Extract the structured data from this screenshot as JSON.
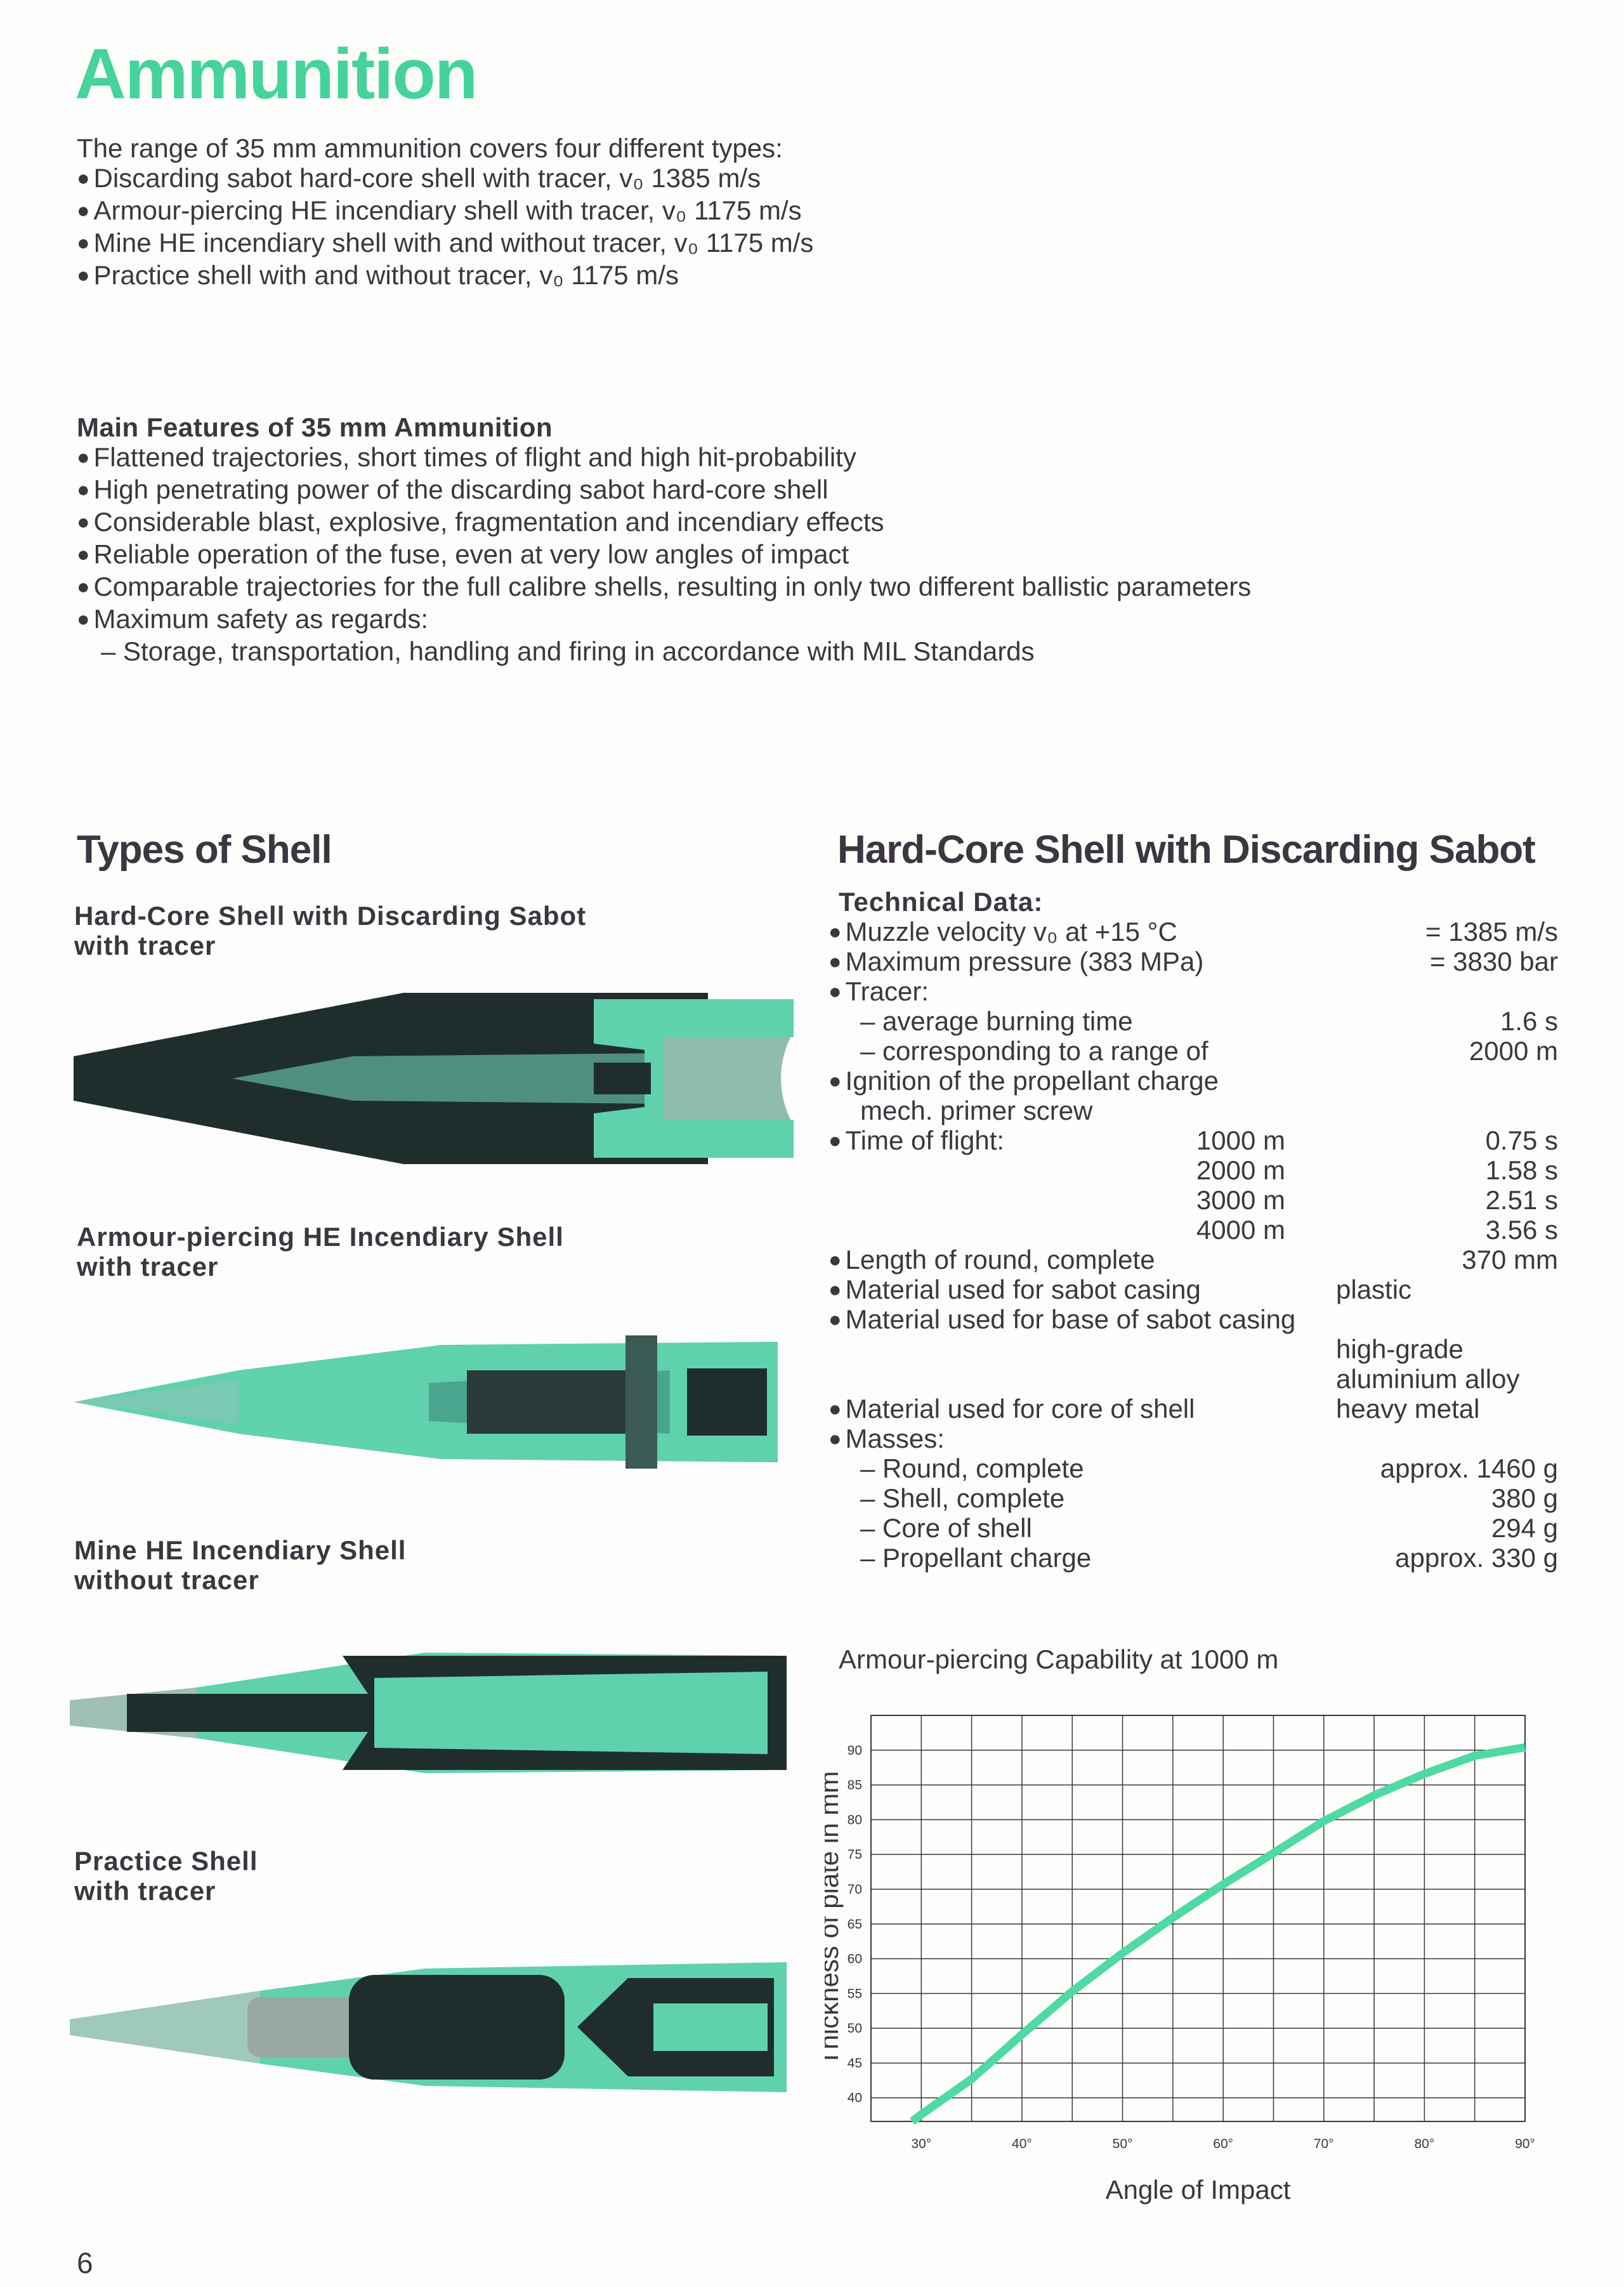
{
  "title": "Ammunition",
  "intro": {
    "lead": "The range of 35 mm ammunition covers four different types:",
    "items": [
      "Discarding sabot hard-core shell with tracer, v₀ 1385 m/s",
      "Armour-piercing HE incendiary shell with tracer, v₀ 1175 m/s",
      "Mine HE incendiary shell with and without tracer, v₀ 1175 m/s",
      "Practice shell with and without tracer, v₀ 1175 m/s"
    ]
  },
  "features": {
    "heading": "Main Features of 35 mm Ammunition",
    "items": [
      "Flattened trajectories, short times of flight and high hit-probability",
      "High penetrating power of the discarding sabot hard-core shell",
      "Considerable blast, explosive, fragmentation and incendiary effects",
      "Reliable operation of the fuse, even at very low angles of impact",
      "Comparable trajectories for the full calibre shells, resulting in only two different ballistic parameters",
      "Maximum safety as regards:"
    ],
    "subitem": "– Storage, transportation, handling and firing in accordance with MIL Standards"
  },
  "types": {
    "heading": "Types of Shell",
    "shells": [
      {
        "name": "Hard-Core Shell with Discarding Sabot",
        "sub": "with tracer"
      },
      {
        "name": "Armour-piercing HE Incendiary Shell",
        "sub": "with tracer"
      },
      {
        "name": "Mine HE Incendiary Shell",
        "sub": "without tracer"
      },
      {
        "name": "Practice Shell",
        "sub": "with tracer"
      }
    ]
  },
  "colors": {
    "accent": "#45d39b",
    "shell_teal": "#5fd2ad",
    "shell_dark": "#1f2e2d",
    "text": "#3b3640"
  },
  "tech": {
    "heading": "Hard-Core Shell with Discarding Sabot",
    "subheading": "Technical Data:",
    "rows": [
      {
        "bullet": true,
        "label": "Muzzle velocity v₀ at +15 °C",
        "value": "= 1385 m/s"
      },
      {
        "bullet": true,
        "label": "Maximum pressure (383 MPa)",
        "value": "= 3830 bar"
      },
      {
        "bullet": true,
        "label": "Tracer:"
      },
      {
        "dash": true,
        "label": "– average burning time",
        "value": "1.6 s"
      },
      {
        "dash": true,
        "label": "– corresponding to a range of",
        "value": "2000 m"
      },
      {
        "bullet": true,
        "label": "Ignition of the propellant charge"
      },
      {
        "dash": true,
        "label": "mech. primer screw"
      },
      {
        "bullet": true,
        "label": "Time of flight:",
        "mid": "1000 m",
        "value": "0.75 s"
      },
      {
        "mid": "2000 m",
        "value": "1.58 s"
      },
      {
        "mid": "3000 m",
        "value": "2.51 s"
      },
      {
        "mid": "4000 m",
        "value": "3.56 s"
      },
      {
        "bullet": true,
        "label": "Length of round, complete",
        "value": "370 mm"
      },
      {
        "bullet": true,
        "label": "Material used for sabot casing",
        "valueL": "plastic"
      },
      {
        "bullet": true,
        "label": "Material used for base of sabot casing"
      },
      {
        "valueL": "high-grade"
      },
      {
        "valueL": "aluminium alloy"
      },
      {
        "bullet": true,
        "label": "Material used for core of shell",
        "valueL": "heavy metal"
      },
      {
        "bullet": true,
        "label": "Masses:"
      },
      {
        "dash": true,
        "label": "– Round, complete",
        "value": "approx. 1460 g"
      },
      {
        "dash": true,
        "label": "– Shell, complete",
        "value": "380 g"
      },
      {
        "dash": true,
        "label": "– Core of shell",
        "value": "294 g"
      },
      {
        "dash": true,
        "label": "– Propellant charge",
        "value": "approx. 330 g"
      }
    ]
  },
  "chart_data": {
    "type": "line",
    "title": "Armour-piercing Capability at 1000 m",
    "xlabel": "Angle of Impact",
    "ylabel": "Thickness of plate in mm",
    "xlim": [
      25,
      90
    ],
    "ylim": [
      36.6,
      95
    ],
    "xticks": [
      30,
      40,
      50,
      60,
      70,
      80,
      90
    ],
    "xtick_labels": [
      "30°",
      "40°",
      "50°",
      "60°",
      "70°",
      "80°",
      "90°"
    ],
    "yticks": [
      40,
      45,
      50,
      55,
      60,
      65,
      70,
      75,
      80,
      85,
      90
    ],
    "grid": true,
    "grid_step": {
      "x": 5,
      "y": 5
    },
    "line_color": "#4fd9a4",
    "series": [
      {
        "x": [
          29.1,
          30,
          35,
          40,
          45,
          50,
          55,
          60,
          65,
          70,
          75,
          80,
          85,
          90
        ],
        "y": [
          36.6,
          37.6,
          42.7,
          49.1,
          55.3,
          60.8,
          65.9,
          70.7,
          75.2,
          79.8,
          83.5,
          86.6,
          89.2,
          90.4
        ]
      }
    ]
  },
  "page_number": "6"
}
